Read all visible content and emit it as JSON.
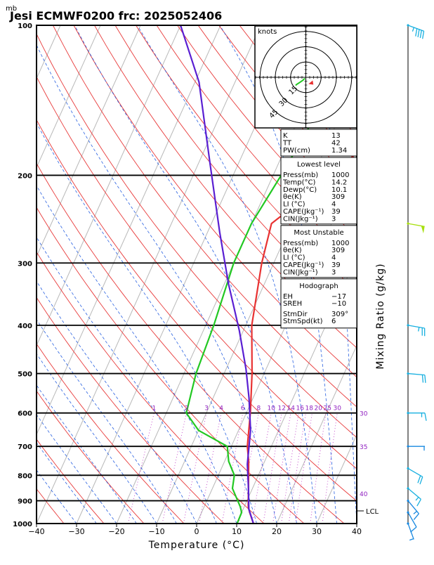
{
  "header": {
    "unit": "mb",
    "title": "Jesi ECMWF0200  frc: 2025052406"
  },
  "chart_data": {
    "type": "line",
    "xlabel": "Temperature (°C)",
    "ylabel": "Mixing Ratio (g/kg)",
    "xlim": [
      -40,
      40
    ],
    "ylim": [
      1000,
      100
    ],
    "yscale": "log",
    "x_ticks": [
      "−40",
      "−30",
      "−20",
      "−10",
      "0",
      "10",
      "20",
      "30",
      "40"
    ],
    "x_tick_values": [
      -40,
      -30,
      -20,
      -10,
      0,
      10,
      20,
      30,
      40
    ],
    "p_ticks": [
      "100",
      "200",
      "300",
      "400",
      "500",
      "600",
      "700",
      "800",
      "900",
      "1000"
    ],
    "p_tick_values": [
      100,
      200,
      300,
      400,
      500,
      600,
      700,
      800,
      900,
      1000
    ],
    "mixing_ratio_labels": [
      "1",
      "2",
      "3",
      "4",
      "6",
      "8",
      "10",
      "12",
      "14",
      "16",
      "18",
      "20",
      "25",
      "30"
    ],
    "mixing_ratio_values": [
      1,
      2,
      3,
      4,
      6,
      8,
      10,
      12,
      14,
      16,
      18,
      20,
      25,
      30
    ],
    "theta_e_labels": [
      "30",
      "35",
      "40"
    ],
    "lcl_label": "LCL",
    "lcl_pressure": 935,
    "series": [
      {
        "color": "#e83232",
        "points": [
          [
            14.2,
            1000
          ],
          [
            12,
            950
          ],
          [
            11,
            925
          ],
          [
            9,
            850
          ],
          [
            6,
            750
          ],
          [
            4,
            700
          ],
          [
            1,
            600
          ],
          [
            -3,
            500
          ],
          [
            -8.5,
            400
          ],
          [
            -13,
            300
          ],
          [
            -15,
            250
          ],
          [
            -5,
            200
          ],
          [
            4,
            150
          ],
          [
            15,
            100
          ]
        ]
      },
      {
        "color": "#22c822",
        "points": [
          [
            10.1,
            1000
          ],
          [
            10,
            950
          ],
          [
            9,
            925
          ],
          [
            5,
            850
          ],
          [
            4,
            800
          ],
          [
            1,
            750
          ],
          [
            -1,
            700
          ],
          [
            -10,
            650
          ],
          [
            -15,
            600
          ],
          [
            -17,
            500
          ],
          [
            -18,
            400
          ],
          [
            -20,
            300
          ],
          [
            -20,
            250
          ],
          [
            -18,
            200
          ],
          [
            -16,
            150
          ],
          [
            -13,
            100
          ]
        ]
      },
      {
        "color": "#5a1fd2",
        "points": [
          [
            14.2,
            1000
          ],
          [
            11.4,
            935
          ],
          [
            9,
            850
          ],
          [
            6,
            760
          ],
          [
            3,
            650
          ],
          [
            -1,
            560
          ],
          [
            -5,
            490
          ],
          [
            -11,
            410
          ],
          [
            -19,
            330
          ],
          [
            -27,
            260
          ],
          [
            -37,
            190
          ],
          [
            -49,
            130
          ],
          [
            -60,
            100
          ]
        ]
      }
    ]
  },
  "hodograph": {
    "unit_label": "knots",
    "ring_labels": [
      "15",
      "30",
      "45"
    ],
    "ring_values": [
      15,
      30,
      45
    ],
    "storm_motion": {
      "direction_deg": 309,
      "speed_kt": 6
    },
    "trace": [
      [
        -1,
        1
      ],
      [
        -3,
        3
      ],
      [
        -6,
        5
      ],
      [
        -9,
        7
      ],
      [
        -10,
        8
      ]
    ]
  },
  "indices": {
    "top": [
      {
        "label": "K",
        "value": "13"
      },
      {
        "label": "TT",
        "value": "42"
      },
      {
        "label": "PW(cm)",
        "value": "1.34"
      }
    ],
    "lowest_level": {
      "title": "Lowest level",
      "rows": [
        {
          "label": "Press(mb)",
          "value": "1000"
        },
        {
          "label": "Temp(°C)",
          "value": "14.2"
        },
        {
          "label": "Dewp(°C)",
          "value": "10.1"
        },
        {
          "label": "θe(K)",
          "value": "309"
        },
        {
          "label": "LI (°C)",
          "value": "4"
        },
        {
          "label": "CAPE(Jkg⁻¹)",
          "value": "39"
        },
        {
          "label": "CIN(Jkg⁻¹)",
          "value": "3"
        }
      ]
    },
    "most_unstable": {
      "title": "Most Unstable",
      "rows": [
        {
          "label": "Press(mb)",
          "value": "1000"
        },
        {
          "label": "θe(K)",
          "value": "309"
        },
        {
          "label": "LI (°C)",
          "value": "4"
        },
        {
          "label": "CAPE(Jkg⁻¹)",
          "value": "39"
        },
        {
          "label": "CIN(Jkg⁻¹)",
          "value": "3"
        }
      ]
    },
    "hodograph_box": {
      "title": "Hodograph",
      "rows": [
        {
          "label": "EH",
          "value": "−17"
        },
        {
          "label": "SREH",
          "value": "−10"
        },
        {
          "label": "StmDir",
          "value": "309°"
        },
        {
          "label": "StmSpd(kt)",
          "value": "6"
        }
      ]
    }
  },
  "wind_barbs": [
    {
      "pressure": 100,
      "color": "#18b0e0",
      "dir_deg": 250,
      "speed_kt": 45
    },
    {
      "pressure": 250,
      "color": "#a8e010",
      "dir_deg": 260,
      "speed_kt": 50
    },
    {
      "pressure": 400,
      "color": "#18b0e0",
      "dir_deg": 260,
      "speed_kt": 25
    },
    {
      "pressure": 500,
      "color": "#18b0e0",
      "dir_deg": 265,
      "speed_kt": 20
    },
    {
      "pressure": 600,
      "color": "#18b0e0",
      "dir_deg": 270,
      "speed_kt": 15
    },
    {
      "pressure": 700,
      "color": "#1888e0",
      "dir_deg": 270,
      "speed_kt": 5
    },
    {
      "pressure": 775,
      "color": "#18b0e0",
      "dir_deg": 240,
      "speed_kt": 20
    },
    {
      "pressure": 850,
      "color": "#18b0e0",
      "dir_deg": 230,
      "speed_kt": 15
    },
    {
      "pressure": 900,
      "color": "#1888e0",
      "dir_deg": 220,
      "speed_kt": 15
    },
    {
      "pressure": 950,
      "color": "#1888e0",
      "dir_deg": 210,
      "speed_kt": 10
    },
    {
      "pressure": 1000,
      "color": "#1888e0",
      "dir_deg": 200,
      "speed_kt": 5
    }
  ]
}
